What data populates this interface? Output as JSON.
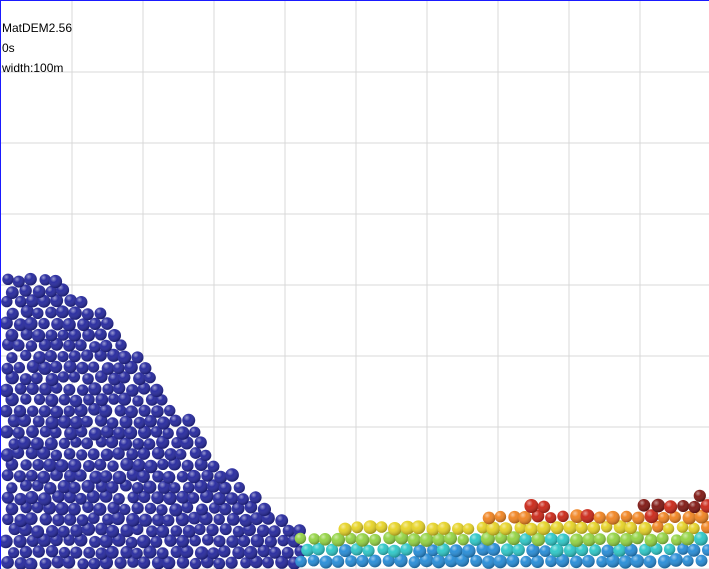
{
  "app": {
    "name": "MatDEM2.56"
  },
  "info": {
    "time": "0s",
    "width": "width:100m"
  },
  "scene": {
    "grid": true,
    "colors": {
      "background": "#ffffff",
      "grid": "#d9d9d9",
      "frame": "#1a1aff",
      "pile_particles": "#1c1f9a",
      "colormap": [
        "#1c1f9a",
        "#1e88d6",
        "#25c6c6",
        "#8fd23c",
        "#e6d21e",
        "#f07f18",
        "#c81e0e",
        "#7a0d08"
      ]
    }
  }
}
